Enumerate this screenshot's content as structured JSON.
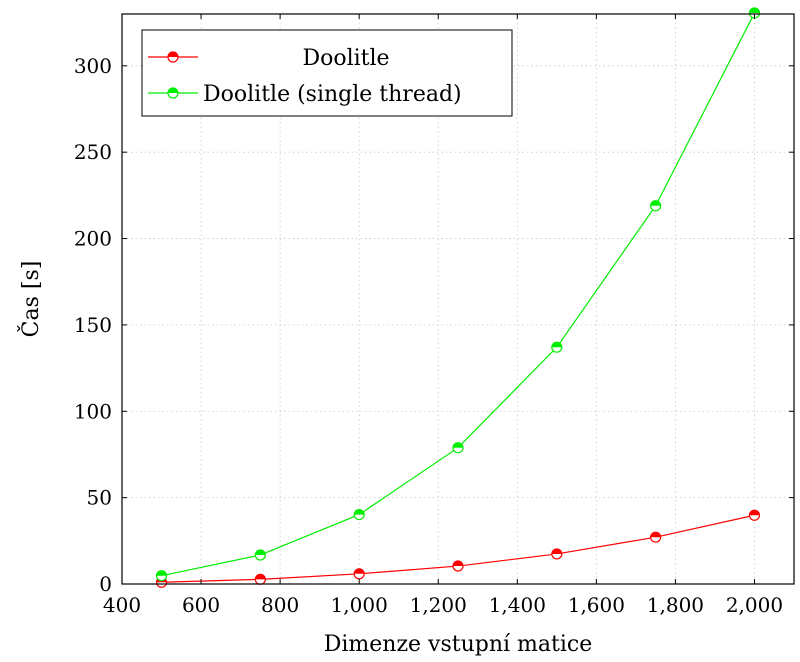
{
  "chart_data": {
    "type": "line",
    "xlabel": "Dimenze vstupní matice",
    "ylabel": "Čas [s]",
    "xlim": [
      400,
      2100
    ],
    "ylim": [
      0,
      330
    ],
    "xticks": [
      400,
      600,
      800,
      1000,
      1200,
      1400,
      1600,
      1800,
      2000
    ],
    "xtick_labels": [
      "400",
      "600",
      "800",
      "1,000",
      "1,200",
      "1,400",
      "1,600",
      "1,800",
      "2,000"
    ],
    "yticks": [
      0,
      50,
      100,
      150,
      200,
      250,
      300
    ],
    "ytick_labels": [
      "0",
      "50",
      "100",
      "150",
      "200",
      "250",
      "300"
    ],
    "grid": true,
    "legend_position": "top-left",
    "series": [
      {
        "name": "Doolitle",
        "color": "#ff0000",
        "x": [
          500,
          750,
          1000,
          1250,
          1500,
          1750,
          2000
        ],
        "y": [
          1.0,
          2.7,
          5.9,
          10.4,
          17.4,
          27.1,
          39.8
        ]
      },
      {
        "name": "Doolitle (single thread)",
        "color": "#00ee00",
        "x": [
          500,
          750,
          1000,
          1250,
          1500,
          1750,
          2000
        ],
        "y": [
          4.8,
          16.8,
          40.2,
          78.9,
          137.1,
          219.0,
          330.6
        ]
      }
    ]
  }
}
